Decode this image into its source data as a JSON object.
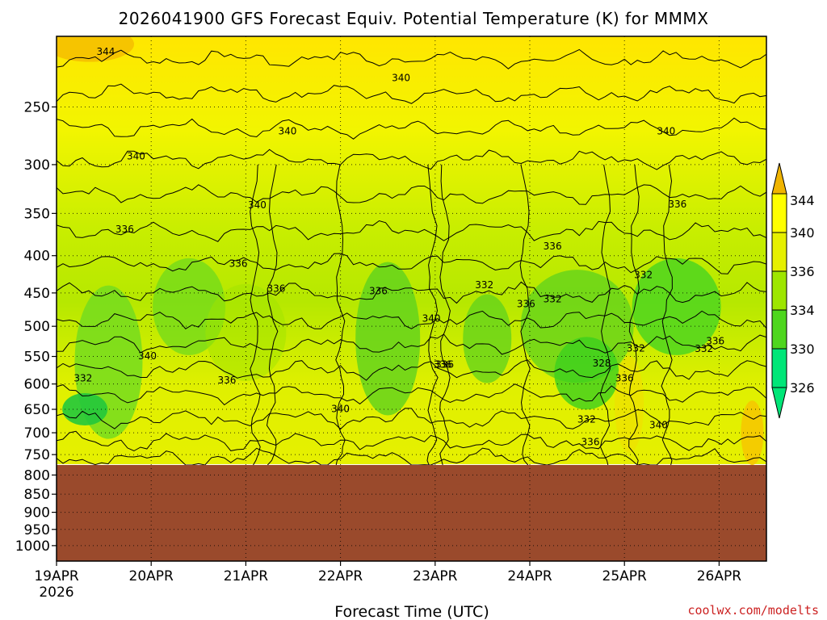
{
  "chart_data": {
    "type": "heatmap",
    "title": "2026041900 GFS Forecast Equiv. Potential Temperature (K) for MMMX",
    "xlabel": "Forecast Time (UTC)",
    "ylabel": "",
    "credit": "coolwx.com/modelts",
    "x_ticks": [
      "19APR",
      "20APR",
      "21APR",
      "22APR",
      "23APR",
      "24APR",
      "25APR",
      "26APR"
    ],
    "x_year": "2026",
    "x_range_days": [
      0,
      7.5
    ],
    "y_ticks": [
      "250",
      "300",
      "350",
      "400",
      "450",
      "500",
      "550",
      "600",
      "650",
      "700",
      "750",
      "800",
      "850",
      "900",
      "950",
      "1000"
    ],
    "y_axis_scale": "log-pressure (hPa), inverted",
    "y_range_hPa": [
      200,
      1050
    ],
    "surface_pressure_hPa": 775,
    "grid": "dotted",
    "colorbar": {
      "ticks": [
        "344",
        "340",
        "336",
        "334",
        "330",
        "326"
      ],
      "colors": [
        "#f0b400",
        "#ffff00",
        "#e6f000",
        "#9ee600",
        "#4ed61e",
        "#00e678"
      ],
      "extend": "both",
      "position": "right"
    },
    "contour_labels": [
      {
        "text": "344",
        "t": 0.52,
        "p": 210
      },
      {
        "text": "340",
        "t": 3.64,
        "p": 228
      },
      {
        "text": "340",
        "t": 2.44,
        "p": 270
      },
      {
        "text": "340",
        "t": 0.84,
        "p": 292
      },
      {
        "text": "340",
        "t": 6.44,
        "p": 270
      },
      {
        "text": "340",
        "t": 2.12,
        "p": 341
      },
      {
        "text": "336",
        "t": 0.72,
        "p": 368
      },
      {
        "text": "336",
        "t": 6.56,
        "p": 340
      },
      {
        "text": "336",
        "t": 5.24,
        "p": 388
      },
      {
        "text": "336",
        "t": 1.92,
        "p": 410
      },
      {
        "text": "336",
        "t": 2.32,
        "p": 444
      },
      {
        "text": "336",
        "t": 3.4,
        "p": 447
      },
      {
        "text": "336",
        "t": 4.96,
        "p": 466
      },
      {
        "text": "336",
        "t": 1.8,
        "p": 593
      },
      {
        "text": "336",
        "t": 4.1,
        "p": 564
      },
      {
        "text": "336",
        "t": 5.64,
        "p": 721
      },
      {
        "text": "336",
        "t": 6.0,
        "p": 589
      },
      {
        "text": "336",
        "t": 6.96,
        "p": 524
      },
      {
        "text": "332",
        "t": 4.52,
        "p": 439
      },
      {
        "text": "332",
        "t": 5.24,
        "p": 459
      },
      {
        "text": "332",
        "t": 6.2,
        "p": 425
      },
      {
        "text": "332",
        "t": 6.12,
        "p": 536
      },
      {
        "text": "332",
        "t": 6.84,
        "p": 537
      },
      {
        "text": "332",
        "t": 0.28,
        "p": 589
      },
      {
        "text": "332",
        "t": 5.6,
        "p": 671
      },
      {
        "text": "340",
        "t": 3.96,
        "p": 488
      },
      {
        "text": "340",
        "t": 0.96,
        "p": 549
      },
      {
        "text": "340",
        "t": 3.0,
        "p": 649
      },
      {
        "text": "340",
        "t": 6.36,
        "p": 683
      },
      {
        "text": "336",
        "t": 4.08,
        "p": 564
      },
      {
        "text": "328",
        "t": 5.76,
        "p": 562
      }
    ]
  }
}
